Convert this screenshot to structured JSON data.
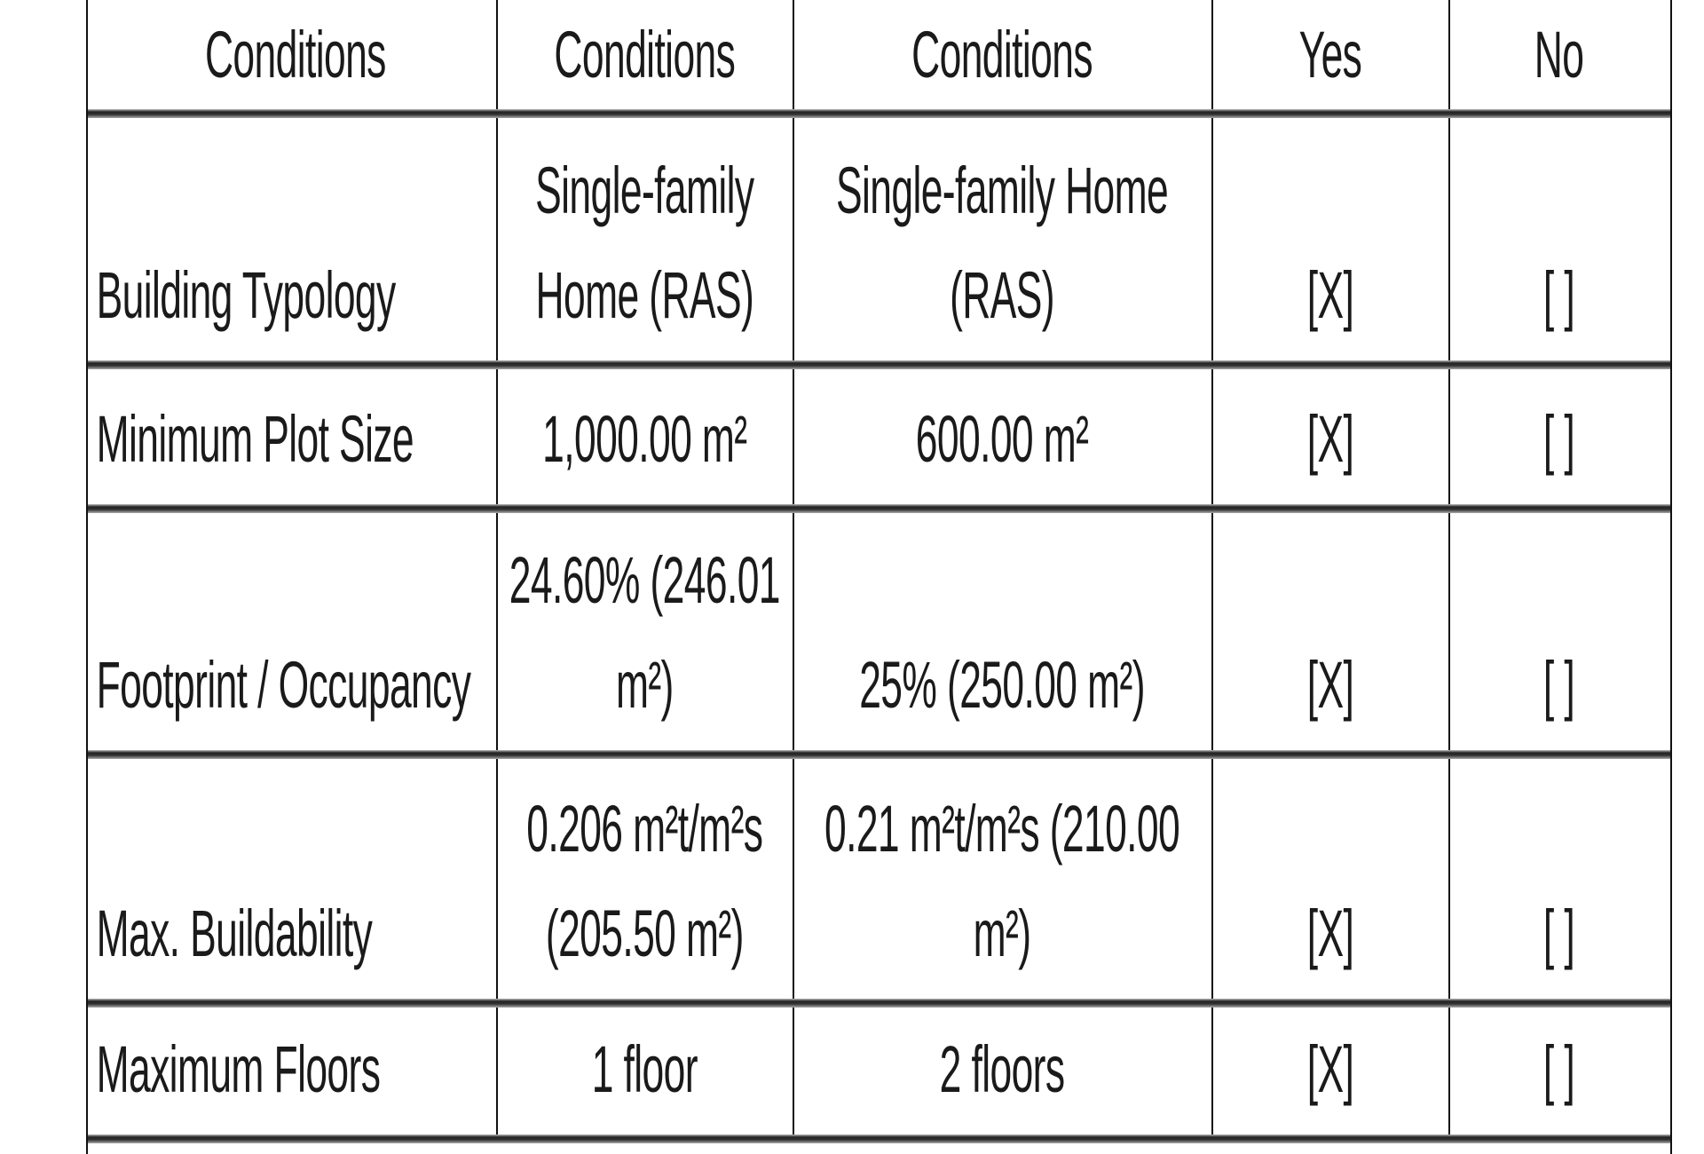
{
  "table": {
    "headers": [
      "Conditions",
      "Conditions",
      "Conditions",
      "Yes",
      "No"
    ],
    "rows": [
      [
        "Building Typology",
        "Single-family Home (RAS)",
        "Single-family Home (RAS)",
        "[X]",
        "[ ]"
      ],
      [
        "Minimum Plot Size",
        "1,000.00 m²",
        "600.00 m²",
        "[X]",
        "[ ]"
      ],
      [
        "Footprint / Occupancy",
        "24.60% (246.01 m²)",
        "25% (250.00 m²)",
        "[X]",
        "[ ]"
      ],
      [
        "Max. Buildability",
        "0.206 m²t/m²s (205.50 m²)",
        "0.21 m²t/m²s (210.00 m²)",
        "[X]",
        "[ ]"
      ],
      [
        "Maximum Floors",
        "1 floor",
        "2 floors",
        "[X]",
        "[ ]"
      ]
    ]
  }
}
